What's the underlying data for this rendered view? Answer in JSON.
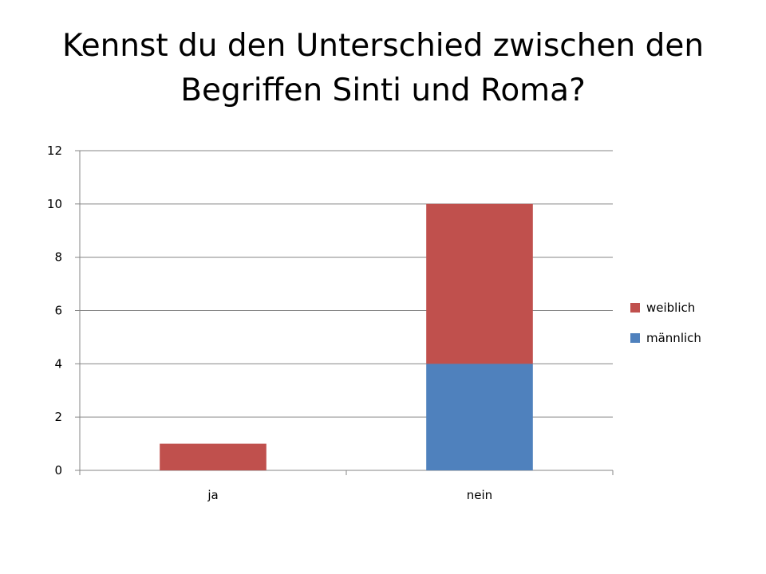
{
  "title": "Kennst du den Unterschied zwischen den Begriffen Sinti und Roma?",
  "chart_data": {
    "type": "bar",
    "stacked": true,
    "categories": [
      "ja",
      "nein"
    ],
    "series": [
      {
        "name": "männlich",
        "values": [
          0,
          4
        ],
        "color": "#4F81BD"
      },
      {
        "name": "weiblich",
        "values": [
          1,
          6
        ],
        "color": "#C0504D"
      }
    ],
    "ylim": [
      0,
      12
    ],
    "yticks": [
      0,
      2,
      4,
      6,
      8,
      10,
      12
    ],
    "grid": true,
    "legend": "right"
  }
}
